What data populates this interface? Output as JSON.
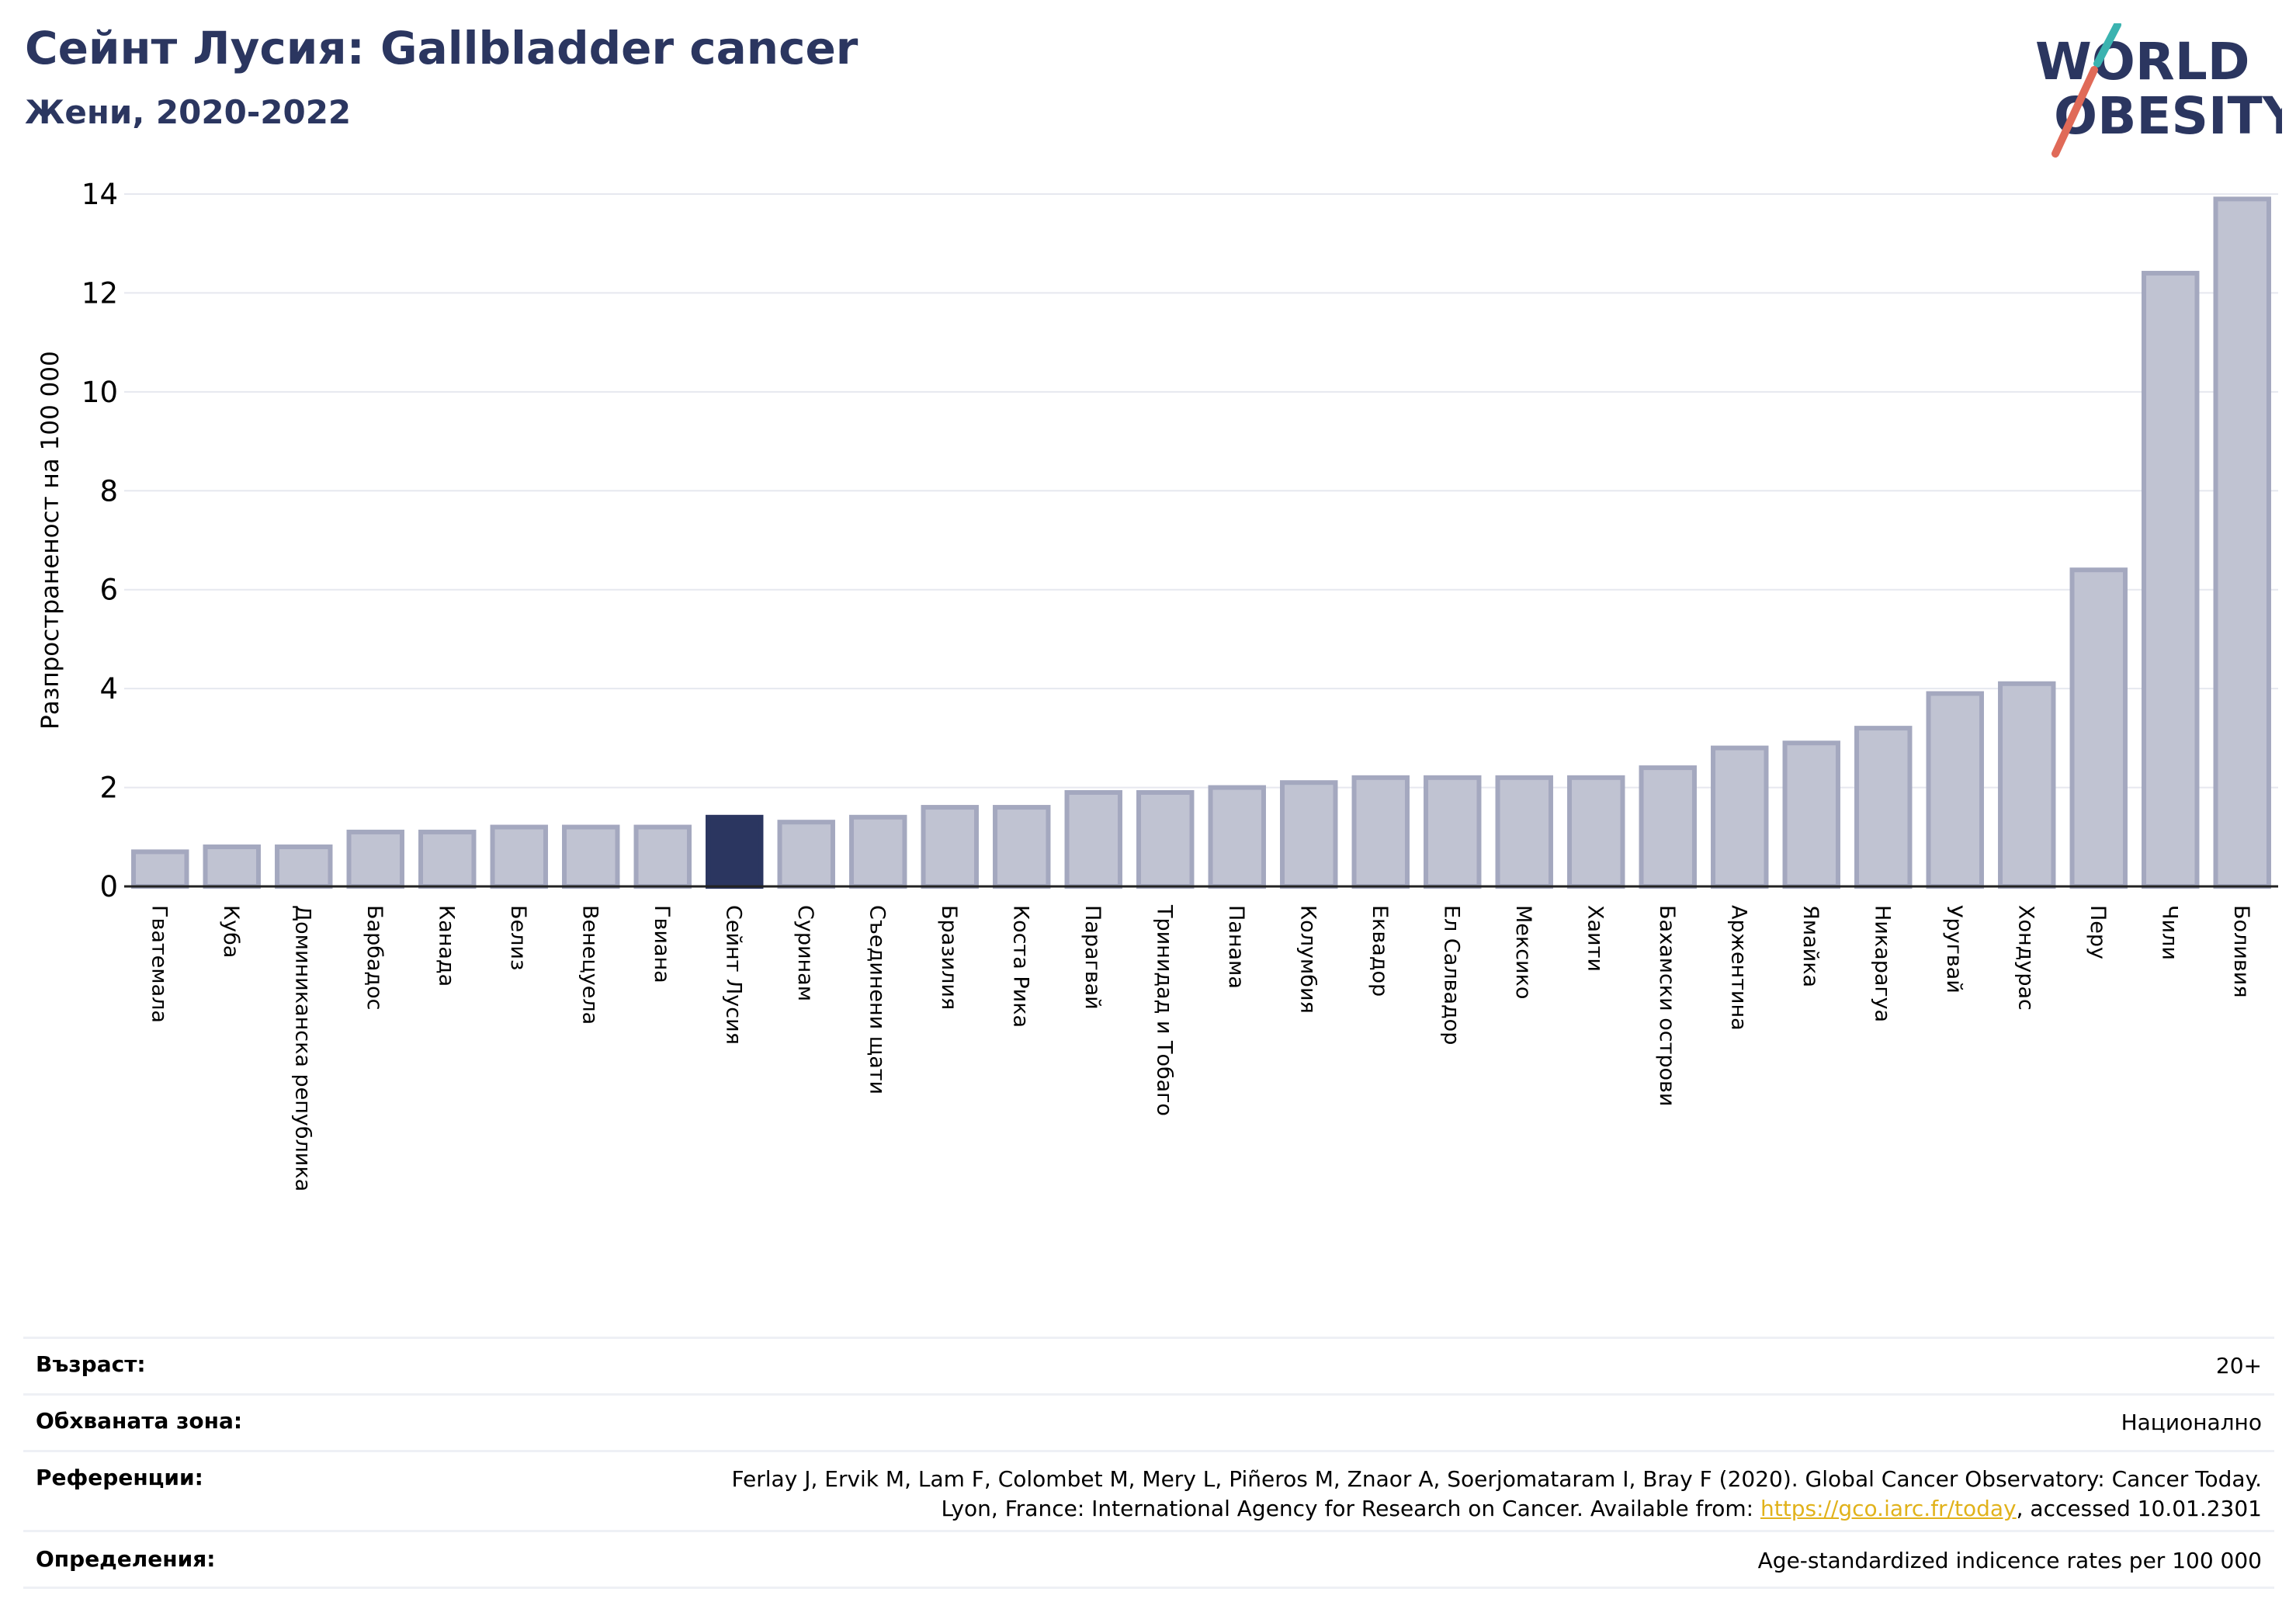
{
  "header": {
    "title": "Сейнт Лусия: Gallbladder cancer",
    "subtitle": "Жени, 2020-2022"
  },
  "logo": {
    "line1": "WORLD",
    "line2": "OBESITY"
  },
  "colors": {
    "highlight": "#2b3660",
    "bar_fill": "#c0c3d2",
    "bar_stroke": "#a4a8bf",
    "title": "#2b3660",
    "link": "#e1b21b",
    "logo_slash_top": "#3bb3b0",
    "logo_slash_bottom": "#e06a58"
  },
  "chart_data": {
    "type": "bar",
    "title": "",
    "xlabel": "",
    "ylabel": "Разпространеност  на 100 000",
    "ylim": [
      0,
      14
    ],
    "yticks": [
      0,
      2,
      4,
      6,
      8,
      10,
      12,
      14
    ],
    "grid": true,
    "highlight_category": "Сейнт Лусия",
    "categories": [
      "Гватемала",
      "Куба",
      "Доминиканска република",
      "Барбадос",
      "Канада",
      "Белиз",
      "Венецуела",
      "Гвиана",
      "Сейнт Лусия",
      "Суринам",
      "Съединени щати",
      "Бразилия",
      "Коста Рика",
      "Парагвай",
      "Тринидад и Тобаго",
      "Панама",
      "Колумбия",
      "Еквадор",
      "Ел Салвадор",
      "Мексико",
      "Хаити",
      "Бахамски острови",
      "Аржентина",
      "Ямайка",
      "Никарагуа",
      "Уругвай",
      "Хондурас",
      "Перу",
      "Чили",
      "Боливия"
    ],
    "values": [
      0.7,
      0.8,
      0.8,
      1.1,
      1.1,
      1.2,
      1.2,
      1.2,
      1.4,
      1.3,
      1.4,
      1.6,
      1.6,
      1.9,
      1.9,
      2.0,
      2.1,
      2.2,
      2.2,
      2.2,
      2.2,
      2.4,
      2.8,
      2.9,
      3.2,
      3.9,
      4.1,
      6.4,
      12.4,
      13.9
    ]
  },
  "info": [
    {
      "label": "Възраст:",
      "value": "20+"
    },
    {
      "label": "Обхваната зона:",
      "value": "Национално"
    },
    {
      "label": "Референции:",
      "value_line1": "Ferlay J, Ervik M, Lam F, Colombet M, Mery L, Piñeros M, Znaor A, Soerjomataram I, Bray F (2020). Global Cancer Observatory: Cancer Today.",
      "value_line2_pre": "Lyon, France: International Agency for Research on Cancer. Available from: ",
      "value_link": "https://gco.iarc.fr/today",
      "value_line2_post": ", accessed 10.01.2301"
    },
    {
      "label": "Определения:",
      "value": "Age-standardized indicence rates per 100 000"
    }
  ]
}
